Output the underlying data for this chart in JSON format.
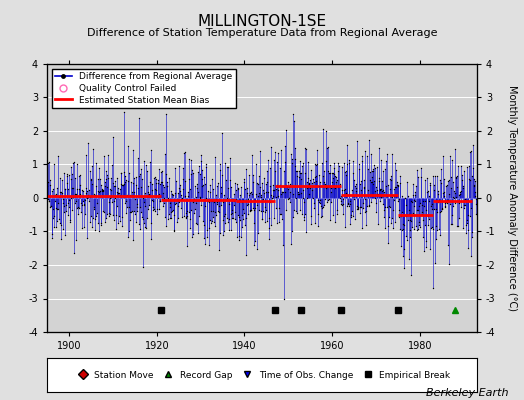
{
  "title": "MILLINGTON-1SE",
  "subtitle": "Difference of Station Temperature Data from Regional Average",
  "ylabel": "Monthly Temperature Anomaly Difference (°C)",
  "xlabel_ticks": [
    1900,
    1920,
    1940,
    1960,
    1980
  ],
  "ylim": [
    -4,
    4
  ],
  "xlim": [
    1895,
    1993
  ],
  "background_color": "#e0e0e0",
  "plot_bg_color": "#d3d3d3",
  "grid_color": "#ffffff",
  "title_fontsize": 11,
  "subtitle_fontsize": 8,
  "ylabel_fontsize": 7,
  "seed": 42,
  "data_start": 1895,
  "data_end": 1992,
  "bias_segments": [
    {
      "start": 1895,
      "end": 1921,
      "bias": 0.05
    },
    {
      "start": 1921,
      "end": 1938,
      "bias": -0.05
    },
    {
      "start": 1938,
      "end": 1947,
      "bias": -0.08
    },
    {
      "start": 1947,
      "end": 1957,
      "bias": 0.35
    },
    {
      "start": 1957,
      "end": 1962,
      "bias": 0.35
    },
    {
      "start": 1962,
      "end": 1975,
      "bias": 0.1
    },
    {
      "start": 1975,
      "end": 1983,
      "bias": -0.5
    },
    {
      "start": 1983,
      "end": 1992,
      "bias": -0.1
    }
  ],
  "empirical_breaks": [
    1921,
    1947,
    1953,
    1962,
    1975
  ],
  "record_gap": [
    1988
  ],
  "time_obs_change": [],
  "station_move": [],
  "line_color": "#0000cc",
  "bias_color": "#ff0000",
  "marker_color": "#000000",
  "qc_color": "#ff69b4",
  "break_color": "#000000",
  "gap_color": "#008800",
  "obs_color": "#0000ff",
  "move_color": "#cc0000",
  "watermark": "Berkeley Earth",
  "watermark_fontsize": 8
}
